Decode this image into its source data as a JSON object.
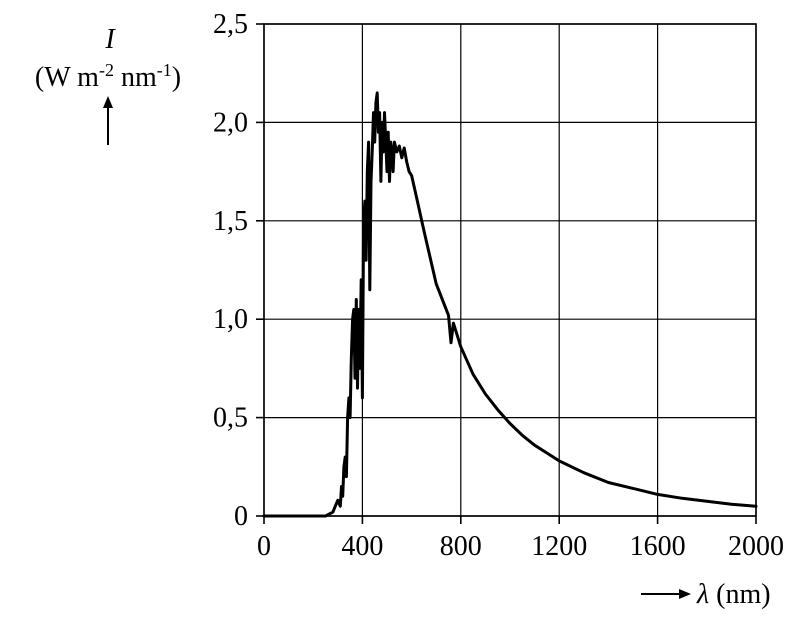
{
  "chart_data": {
    "type": "line",
    "title": "",
    "ylabel_symbol": "I",
    "ylabel_unit": "(W m-2 nm-1)",
    "ylabel_unit_parts": {
      "a": "(W m",
      "sup1": "-2",
      "b": " nm",
      "sup2": "-1",
      "c": ")"
    },
    "xlabel_symbol": "λ",
    "xlabel_unit": "(nm)",
    "xlim": [
      0,
      2000
    ],
    "ylim": [
      0,
      2.5
    ],
    "grid": true,
    "x_ticks": [
      0,
      400,
      800,
      1200,
      1600,
      2000
    ],
    "x_tick_labels": [
      "0",
      "400",
      "800",
      "1200",
      "1600",
      "2000"
    ],
    "y_ticks": [
      0,
      0.5,
      1.0,
      1.5,
      2.0,
      2.5
    ],
    "y_tick_labels": [
      "0",
      "0,5",
      "1,0",
      "1,5",
      "2,0",
      "2,5"
    ],
    "series": [
      {
        "x": [
          0,
          250,
          280,
          290,
          300,
          310,
          315,
          320,
          325,
          330,
          335,
          340,
          345,
          350,
          355,
          360,
          365,
          370,
          375,
          380,
          385,
          390,
          395,
          400,
          405,
          410,
          415,
          420,
          425,
          430,
          435,
          440,
          445,
          450,
          455,
          460,
          465,
          470,
          475,
          480,
          485,
          490,
          495,
          500,
          505,
          510,
          515,
          520,
          525,
          530,
          540,
          550,
          560,
          570,
          580,
          590,
          600,
          620,
          650,
          700,
          750,
          760,
          770,
          800,
          850,
          900,
          950,
          1000,
          1050,
          1100,
          1150,
          1200,
          1300,
          1400,
          1500,
          1600,
          1700,
          1800,
          1900,
          2000
        ],
        "y": [
          0.0,
          0.0,
          0.02,
          0.05,
          0.08,
          0.05,
          0.15,
          0.1,
          0.25,
          0.3,
          0.2,
          0.5,
          0.6,
          0.5,
          0.8,
          1.0,
          1.05,
          0.7,
          1.1,
          0.65,
          1.05,
          0.75,
          1.2,
          0.6,
          1.5,
          1.6,
          1.3,
          1.75,
          1.9,
          1.15,
          1.7,
          1.85,
          2.05,
          1.9,
          2.1,
          2.15,
          1.95,
          2.05,
          1.7,
          2.0,
          1.85,
          2.05,
          1.9,
          1.75,
          1.95,
          1.7,
          1.9,
          1.85,
          1.75,
          1.9,
          1.85,
          1.88,
          1.82,
          1.87,
          1.8,
          1.75,
          1.73,
          1.62,
          1.45,
          1.18,
          1.02,
          0.88,
          0.98,
          0.86,
          0.72,
          0.62,
          0.54,
          0.47,
          0.41,
          0.36,
          0.32,
          0.28,
          0.22,
          0.17,
          0.14,
          0.11,
          0.09,
          0.075,
          0.06,
          0.05
        ]
      }
    ]
  }
}
